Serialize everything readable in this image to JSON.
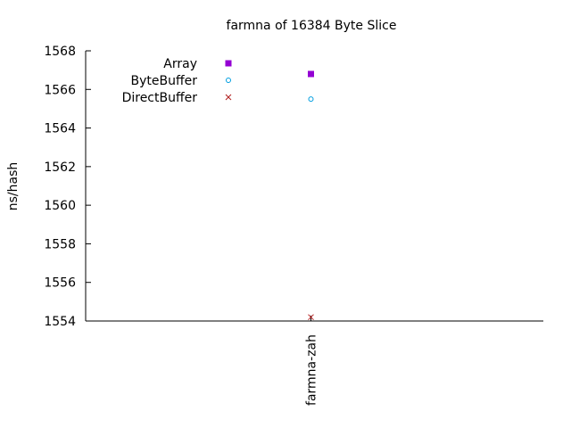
{
  "chart_data": {
    "type": "scatter",
    "title": "farmna of 16384 Byte Slice",
    "xlabel": "",
    "ylabel": "ns/hash",
    "categories": [
      "farmna-zah"
    ],
    "ylim": [
      1554,
      1568
    ],
    "yticks": [
      "1554",
      "1556",
      "1558",
      "1560",
      "1562",
      "1564",
      "1566",
      "1568"
    ],
    "grid": false,
    "legend_position": "top-left",
    "series": [
      {
        "name": "Array",
        "values": [
          1566.8
        ],
        "color": "#9400d3",
        "marker": "filled-square"
      },
      {
        "name": "ByteBuffer",
        "values": [
          1565.5
        ],
        "color": "#009ee0",
        "marker": "open-circle"
      },
      {
        "name": "DirectBuffer",
        "values": [
          1554.2
        ],
        "color": "#b22222",
        "marker": "cross"
      }
    ]
  }
}
